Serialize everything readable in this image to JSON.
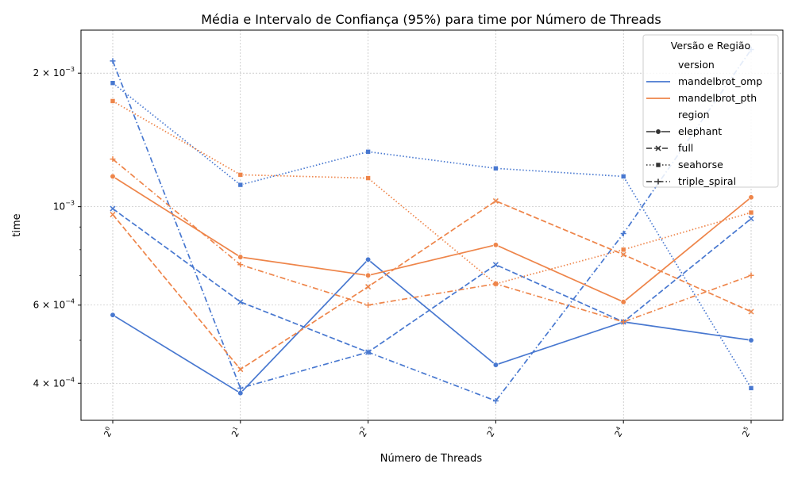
{
  "chart_data": {
    "type": "line",
    "title": "Média e Intervalo de Confiança (95%) para time por Número de Threads",
    "xlabel": "Número de Threads",
    "ylabel": "time",
    "x_scale": "log2",
    "y_scale": "log",
    "x": [
      1,
      2,
      4,
      8,
      16,
      32
    ],
    "xtick_labels": [
      {
        "base": "2",
        "exp": "0"
      },
      {
        "base": "2",
        "exp": "1"
      },
      {
        "base": "2",
        "exp": "2"
      },
      {
        "base": "2",
        "exp": "3"
      },
      {
        "base": "2",
        "exp": "4"
      },
      {
        "base": "2",
        "exp": "5"
      }
    ],
    "ylim": [
      0.00033,
      0.0025
    ],
    "yticks": [
      {
        "value": 0.002,
        "mant": "2 × 10",
        "exp": "−3"
      },
      {
        "value": 0.001,
        "mant": "10",
        "exp": "−3"
      },
      {
        "value": 0.0006,
        "mant": "6 × 10",
        "exp": "−4"
      },
      {
        "value": 0.0004,
        "mant": "4 × 10",
        "exp": "−4"
      }
    ],
    "yticks_minor": [
      0.0005,
      0.0007,
      0.0008,
      0.0009
    ],
    "grid": true,
    "legend": {
      "title": "Versão e Região",
      "placement": "top-right",
      "hue_title": "version",
      "style_title": "region",
      "versions": [
        {
          "name": "mandelbrot_omp",
          "color": "#4878d0"
        },
        {
          "name": "mandelbrot_pth",
          "color": "#ee854a"
        }
      ],
      "regions": [
        {
          "name": "elephant",
          "dash": "solid",
          "marker": "circle"
        },
        {
          "name": "full",
          "dash": "dashed",
          "marker": "x"
        },
        {
          "name": "seahorse",
          "dash": "dotted",
          "marker": "square"
        },
        {
          "name": "triple_spiral",
          "dash": "dashdot",
          "marker": "plus"
        }
      ]
    },
    "series": [
      {
        "version": "mandelbrot_omp",
        "region": "elephant",
        "values": [
          0.00057,
          0.00038,
          0.00076,
          0.00044,
          0.00055,
          0.0005
        ]
      },
      {
        "version": "mandelbrot_omp",
        "region": "full",
        "values": [
          0.00099,
          0.00061,
          0.00047,
          0.00074,
          0.00055,
          0.00094
        ]
      },
      {
        "version": "mandelbrot_omp",
        "region": "seahorse",
        "values": [
          0.0019,
          0.00112,
          0.00133,
          0.00122,
          0.00117,
          0.00039
        ]
      },
      {
        "version": "mandelbrot_omp",
        "region": "triple_spiral",
        "values": [
          0.00213,
          0.00039,
          0.00047,
          0.000365,
          0.00087,
          0.00226
        ]
      },
      {
        "version": "mandelbrot_pth",
        "region": "elephant",
        "values": [
          0.00117,
          0.00077,
          0.0007,
          0.00082,
          0.00061,
          0.00105
        ]
      },
      {
        "version": "mandelbrot_pth",
        "region": "full",
        "values": [
          0.00096,
          0.00043,
          0.00066,
          0.00103,
          0.00078,
          0.00058
        ]
      },
      {
        "version": "mandelbrot_pth",
        "region": "seahorse",
        "values": [
          0.00173,
          0.00118,
          0.00116,
          0.00067,
          0.0008,
          0.00097
        ]
      },
      {
        "version": "mandelbrot_pth",
        "region": "triple_spiral",
        "values": [
          0.00128,
          0.00074,
          0.0006,
          0.00067,
          0.00055,
          0.0007
        ]
      }
    ]
  }
}
